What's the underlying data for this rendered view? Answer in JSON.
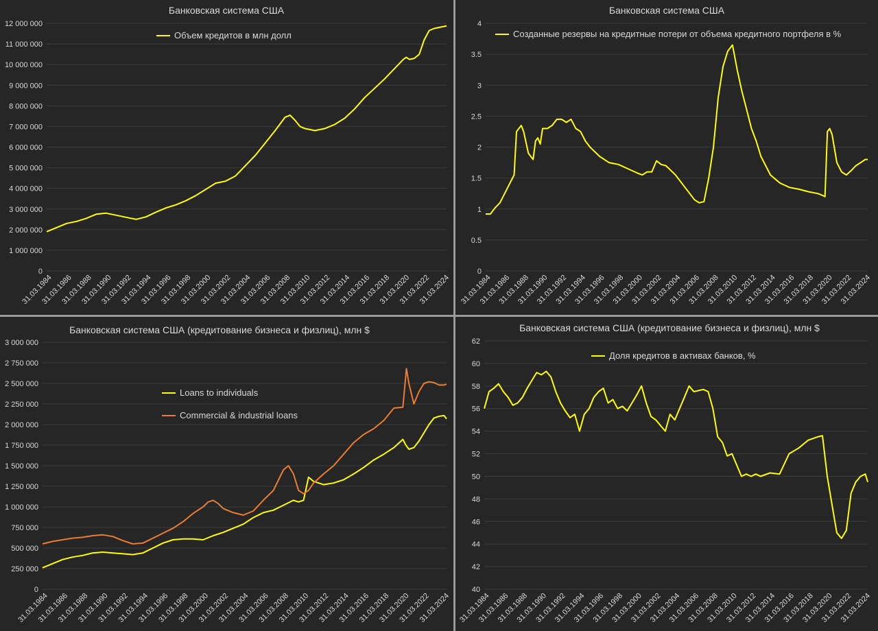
{
  "colors": {
    "background": "#262626",
    "grid": "#3c3c3c",
    "text": "#d9d9d9",
    "yellow": "#ffff00",
    "orange": "#ed7d31"
  },
  "x_ticks": [
    "31.03.1984",
    "31.03.1986",
    "31.03.1988",
    "31.03.1990",
    "31.03.1992",
    "31.03.1994",
    "31.03.1996",
    "31.03.1998",
    "31.03.2000",
    "31.03.2002",
    "31.03.2004",
    "31.03.2006",
    "31.03.2008",
    "31.03.2010",
    "31.03.2012",
    "31.03.2014",
    "31.03.2016",
    "31.03.2018",
    "31.03.2020",
    "31.03.2022",
    "31.03.2024"
  ],
  "chart_data": [
    {
      "id": "loans",
      "type": "line",
      "title": "Банковская система США",
      "xlabel": "",
      "ylabel": "",
      "ylim": [
        0,
        12000000
      ],
      "y_ticks": [
        0,
        1000000,
        2000000,
        3000000,
        4000000,
        5000000,
        6000000,
        7000000,
        8000000,
        9000000,
        10000000,
        11000000,
        12000000
      ],
      "y_tick_labels": [
        "0",
        "1 000 000",
        "2 000 000",
        "3 000 000",
        "4 000 000",
        "5 000 000",
        "6 000 000",
        "7 000 000",
        "8 000 000",
        "9 000 000",
        "10 000 000",
        "11 000 000",
        "12 000 000"
      ],
      "grid": true,
      "legend": "top-center",
      "series": [
        {
          "name": "Объем кредитов в млн долл",
          "color": "#ffff00",
          "x": [
            1984.0,
            1985.0,
            1986.0,
            1987.0,
            1988.0,
            1989.0,
            1990.0,
            1991.0,
            1992.0,
            1993.0,
            1994.0,
            1995.0,
            1996.0,
            1997.0,
            1998.0,
            1999.0,
            2000.0,
            2001.0,
            2002.0,
            2003.0,
            2004.0,
            2005.0,
            2006.0,
            2007.0,
            2008.0,
            2008.5,
            2009.0,
            2009.5,
            2010.0,
            2010.5,
            2011.0,
            2011.5,
            2012.0,
            2013.0,
            2014.0,
            2015.0,
            2016.0,
            2017.0,
            2018.0,
            2019.0,
            2019.9,
            2020.2,
            2020.5,
            2021.0,
            2021.5,
            2022.0,
            2022.5,
            2023.0,
            2023.5,
            2024.0,
            2024.25
          ],
          "y": [
            1900000,
            2100000,
            2300000,
            2400000,
            2550000,
            2750000,
            2800000,
            2700000,
            2600000,
            2500000,
            2620000,
            2850000,
            3050000,
            3200000,
            3400000,
            3650000,
            3950000,
            4250000,
            4350000,
            4600000,
            5100000,
            5600000,
            6200000,
            6800000,
            7450000,
            7550000,
            7300000,
            7000000,
            6900000,
            6850000,
            6800000,
            6850000,
            6900000,
            7100000,
            7400000,
            7850000,
            8400000,
            8850000,
            9300000,
            9800000,
            10250000,
            10350000,
            10250000,
            10300000,
            10500000,
            11200000,
            11650000,
            11750000,
            11800000,
            11850000,
            11880000
          ]
        }
      ]
    },
    {
      "id": "reserves",
      "type": "line",
      "title": "Банковская система США",
      "xlabel": "",
      "ylabel": "",
      "ylim": [
        0,
        4
      ],
      "y_ticks": [
        0,
        0.5,
        1,
        1.5,
        2,
        2.5,
        3,
        3.5,
        4
      ],
      "y_tick_labels": [
        "0",
        "0.5",
        "1",
        "1.5",
        "2",
        "2.5",
        "3",
        "3.5",
        "4"
      ],
      "grid": true,
      "legend": "top-center",
      "series": [
        {
          "name": "Созданные резервы на кредитные потери от объема кредитного портфеля в %",
          "color": "#ffff00",
          "x": [
            1984.0,
            1984.5,
            1985.0,
            1985.5,
            1986.0,
            1986.5,
            1987.0,
            1987.25,
            1987.5,
            1987.75,
            1988.0,
            1988.5,
            1989.0,
            1989.25,
            1989.5,
            1989.75,
            1990.0,
            1990.5,
            1991.0,
            1991.5,
            1992.0,
            1992.5,
            1993.0,
            1993.5,
            1994.0,
            1994.5,
            1995.0,
            1996.0,
            1997.0,
            1998.0,
            1999.0,
            2000.0,
            2000.5,
            2001.0,
            2001.5,
            2002.0,
            2002.5,
            2003.0,
            2004.0,
            2005.0,
            2006.0,
            2006.5,
            2007.0,
            2007.5,
            2008.0,
            2008.5,
            2009.0,
            2009.5,
            2010.0,
            2010.25,
            2010.5,
            2011.0,
            2011.5,
            2012.0,
            2012.5,
            2013.0,
            2014.0,
            2015.0,
            2016.0,
            2017.0,
            2018.0,
            2019.0,
            2019.5,
            2019.75,
            2020.0,
            2020.25,
            2020.5,
            2021.0,
            2021.5,
            2022.0,
            2022.5,
            2023.0,
            2023.5,
            2024.0,
            2024.25
          ],
          "y": [
            0.92,
            0.92,
            1.02,
            1.1,
            1.25,
            1.4,
            1.55,
            2.25,
            2.3,
            2.35,
            2.25,
            1.9,
            1.8,
            2.1,
            2.15,
            2.05,
            2.3,
            2.3,
            2.35,
            2.45,
            2.45,
            2.4,
            2.45,
            2.3,
            2.25,
            2.1,
            2.0,
            1.85,
            1.75,
            1.72,
            1.65,
            1.58,
            1.55,
            1.6,
            1.6,
            1.78,
            1.72,
            1.7,
            1.55,
            1.35,
            1.15,
            1.1,
            1.12,
            1.5,
            2.0,
            2.8,
            3.3,
            3.55,
            3.65,
            3.45,
            3.25,
            2.9,
            2.6,
            2.3,
            2.1,
            1.85,
            1.55,
            1.42,
            1.35,
            1.32,
            1.28,
            1.25,
            1.22,
            1.2,
            2.25,
            2.3,
            2.2,
            1.75,
            1.6,
            1.55,
            1.62,
            1.7,
            1.75,
            1.8,
            1.8
          ]
        }
      ]
    },
    {
      "id": "business_individuals",
      "type": "line",
      "title": "Банковская система США (кредитование бизнеса и физлиц), млн $",
      "xlabel": "",
      "ylabel": "",
      "ylim": [
        0,
        3000000
      ],
      "y_ticks": [
        0,
        250000,
        500000,
        750000,
        1000000,
        1250000,
        1500000,
        1750000,
        2000000,
        2250000,
        2500000,
        2750000,
        3000000
      ],
      "y_tick_labels": [
        "0",
        "250 000",
        "500 000",
        "750 000",
        "1 000 000",
        "1 250 000",
        "1 500 000",
        "1 750 000",
        "2 000 000",
        "2 250 000",
        "2 500 000",
        "2 750 000",
        "3 000 000"
      ],
      "grid": true,
      "legend": "center-left",
      "series": [
        {
          "name": "Loans to individuals",
          "color": "#ffff00",
          "x": [
            1984.0,
            1985.0,
            1986.0,
            1987.0,
            1988.0,
            1989.0,
            1990.0,
            1991.0,
            1992.0,
            1993.0,
            1994.0,
            1995.0,
            1996.0,
            1997.0,
            1998.0,
            1999.0,
            2000.0,
            2001.0,
            2002.0,
            2003.0,
            2004.0,
            2005.0,
            2006.0,
            2007.0,
            2008.0,
            2009.0,
            2009.5,
            2010.0,
            2010.5,
            2011.0,
            2012.0,
            2013.0,
            2014.0,
            2015.0,
            2016.0,
            2017.0,
            2018.0,
            2019.0,
            2019.9,
            2020.2,
            2020.5,
            2021.0,
            2021.5,
            2022.0,
            2022.5,
            2023.0,
            2023.5,
            2024.0,
            2024.25
          ],
          "y": [
            260000,
            310000,
            360000,
            390000,
            410000,
            440000,
            450000,
            440000,
            430000,
            420000,
            440000,
            500000,
            560000,
            600000,
            610000,
            610000,
            600000,
            650000,
            690000,
            740000,
            790000,
            870000,
            930000,
            960000,
            1020000,
            1080000,
            1060000,
            1080000,
            1360000,
            1310000,
            1270000,
            1290000,
            1330000,
            1400000,
            1480000,
            1570000,
            1640000,
            1720000,
            1820000,
            1750000,
            1700000,
            1720000,
            1800000,
            1900000,
            2000000,
            2080000,
            2100000,
            2110000,
            2070000
          ]
        },
        {
          "name": "Commercial & industrial loans",
          "color": "#ed7d31",
          "x": [
            1984.0,
            1985.0,
            1986.0,
            1987.0,
            1988.0,
            1989.0,
            1990.0,
            1991.0,
            1992.0,
            1993.0,
            1994.0,
            1995.0,
            1996.0,
            1997.0,
            1998.0,
            1999.0,
            2000.0,
            2000.5,
            2001.0,
            2001.5,
            2002.0,
            2003.0,
            2004.0,
            2005.0,
            2006.0,
            2007.0,
            2008.0,
            2008.5,
            2009.0,
            2009.5,
            2010.0,
            2010.5,
            2011.0,
            2012.0,
            2013.0,
            2014.0,
            2015.0,
            2016.0,
            2017.0,
            2018.0,
            2019.0,
            2019.9,
            2020.25,
            2020.5,
            2021.0,
            2021.5,
            2022.0,
            2022.5,
            2023.0,
            2023.5,
            2024.0,
            2024.25
          ],
          "y": [
            550000,
            580000,
            600000,
            620000,
            630000,
            650000,
            660000,
            640000,
            590000,
            550000,
            560000,
            620000,
            680000,
            740000,
            820000,
            920000,
            1000000,
            1060000,
            1080000,
            1040000,
            980000,
            930000,
            900000,
            950000,
            1080000,
            1200000,
            1450000,
            1500000,
            1400000,
            1200000,
            1160000,
            1200000,
            1290000,
            1400000,
            1500000,
            1640000,
            1780000,
            1880000,
            1950000,
            2050000,
            2200000,
            2210000,
            2680000,
            2500000,
            2250000,
            2400000,
            2500000,
            2520000,
            2510000,
            2480000,
            2480000,
            2490000
          ]
        }
      ]
    },
    {
      "id": "loan_share",
      "type": "line",
      "title": "Банковская система США (кредитование бизнеса и физлиц), млн $",
      "xlabel": "",
      "ylabel": "",
      "ylim": [
        40,
        62
      ],
      "y_ticks": [
        40,
        42,
        44,
        46,
        48,
        50,
        52,
        54,
        56,
        58,
        60,
        62
      ],
      "y_tick_labels": [
        "40",
        "42",
        "44",
        "46",
        "48",
        "50",
        "52",
        "54",
        "56",
        "58",
        "60",
        "62"
      ],
      "grid": true,
      "legend": "top-center",
      "series": [
        {
          "name": "Доля кредитов в активах банков, %",
          "color": "#ffff00",
          "x": [
            1984.0,
            1984.5,
            1985.0,
            1985.5,
            1986.0,
            1986.5,
            1987.0,
            1987.5,
            1988.0,
            1988.5,
            1989.0,
            1989.5,
            1990.0,
            1990.5,
            1991.0,
            1991.5,
            1992.0,
            1992.5,
            1993.0,
            1993.5,
            1994.0,
            1994.5,
            1995.0,
            1995.5,
            1996.0,
            1996.5,
            1997.0,
            1997.5,
            1998.0,
            1998.5,
            1999.0,
            1999.5,
            2000.0,
            2000.5,
            2001.0,
            2001.5,
            2002.0,
            2002.5,
            2003.0,
            2003.5,
            2004.0,
            2004.5,
            2005.0,
            2005.5,
            2006.0,
            2006.5,
            2007.0,
            2007.5,
            2008.0,
            2008.5,
            2009.0,
            2009.5,
            2010.0,
            2010.5,
            2011.0,
            2011.5,
            2012.0,
            2012.5,
            2013.0,
            2014.0,
            2015.0,
            2016.0,
            2017.0,
            2018.0,
            2019.0,
            2019.5,
            2020.0,
            2020.5,
            2021.0,
            2021.5,
            2022.0,
            2022.5,
            2023.0,
            2023.5,
            2024.0,
            2024.25
          ],
          "y": [
            56.0,
            57.5,
            57.8,
            58.2,
            57.5,
            57.0,
            56.3,
            56.5,
            57.0,
            57.8,
            58.5,
            59.2,
            59.0,
            59.3,
            58.8,
            57.5,
            56.5,
            55.8,
            55.2,
            55.5,
            54.0,
            55.5,
            56.0,
            57.0,
            57.5,
            57.8,
            56.5,
            56.8,
            56.0,
            56.2,
            55.8,
            56.5,
            57.2,
            58.0,
            56.5,
            55.3,
            55.0,
            54.5,
            54.0,
            55.5,
            55.0,
            56.0,
            57.0,
            58.0,
            57.5,
            57.6,
            57.7,
            57.5,
            56.0,
            53.5,
            53.0,
            51.8,
            52.0,
            51.0,
            50.0,
            50.2,
            50.0,
            50.2,
            50.0,
            50.3,
            50.2,
            52.0,
            52.5,
            53.2,
            53.5,
            53.6,
            50.0,
            47.5,
            45.0,
            44.5,
            45.2,
            48.5,
            49.5,
            50.0,
            50.2,
            49.5
          ]
        }
      ]
    }
  ]
}
